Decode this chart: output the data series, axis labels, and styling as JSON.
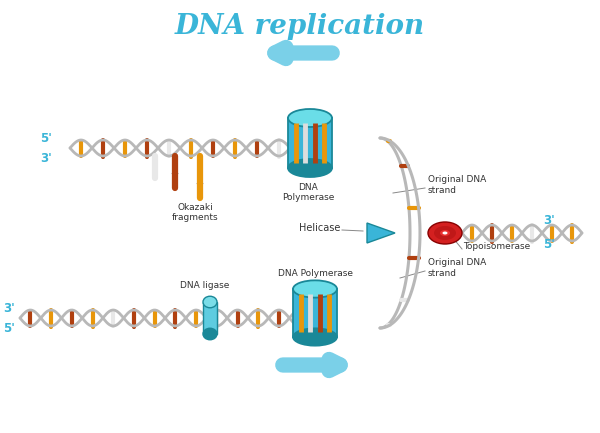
{
  "title": "DNA replication",
  "title_color": "#3ab5d8",
  "title_fontsize": 20,
  "bg_color": "#ffffff",
  "labels": {
    "5prime_top": "5'",
    "3prime_top": "3'",
    "3prime_right_upper": "3'",
    "5prime_right_lower": "5'",
    "3prime_bottom_left": "3'",
    "5prime_bottom_left": "5'",
    "okazaki": "Okazaki\nfragments",
    "dna_poly_top": "DNA\nPolymerase",
    "dna_poly_bottom": "DNA Polymerase",
    "helicase": "Helicase",
    "topoisomerase": "Topoisomerase",
    "original_strand_top": "Original DNA\nstrand",
    "original_strand_bottom": "Original DNA\nstrand",
    "dna_ligase": "DNA ligase"
  },
  "label_color": "#333333",
  "prime_color": "#3ab5d8",
  "topo_color_outer": "#d42020",
  "topo_color_inner": "#b81010",
  "helicase_color": "#3ab5d8",
  "poly_color_light": "#5ecce0",
  "poly_color_mid": "#3ab5d8",
  "poly_color_dark": "#1a8898",
  "ligase_color_light": "#5ecce0",
  "ligase_color_dark": "#1a8898",
  "strand_color": "#b8b8b8",
  "base_col_orange": "#e8960a",
  "base_col_brown": "#b04010",
  "base_col_yellow": "#f0c040",
  "base_col_white": "#e8e8e8",
  "arrow_color": "#7ad0e8",
  "connector_color": "#999999"
}
